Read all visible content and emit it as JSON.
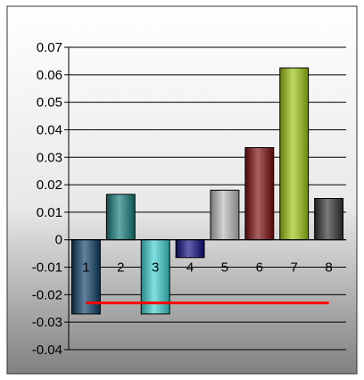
{
  "chart_data": {
    "type": "bar",
    "categories": [
      "1",
      "2",
      "3",
      "4",
      "5",
      "6",
      "7",
      "8"
    ],
    "values": [
      -0.027,
      0.0165,
      -0.027,
      -0.0065,
      0.018,
      0.0335,
      0.0625,
      0.015
    ],
    "reference_line": -0.023,
    "ylim": [
      -0.04,
      0.07
    ],
    "yticks": [
      "0.07",
      "0.06",
      "0.05",
      "0.04",
      "0.03",
      "0.02",
      "0.01",
      "0",
      "-0.01",
      "-0.02",
      "-0.03",
      "-0.04"
    ],
    "title": "",
    "xlabel": "",
    "ylabel": "",
    "grid": true,
    "legend": "none",
    "colors": {
      "bars": [
        "#0d3d66",
        "#127a78",
        "#3fcfcf",
        "#0c0c80",
        "#b9b9b9",
        "#7a0a0a",
        "#9cc40f",
        "#303030"
      ],
      "reference_line": "#ff0000",
      "gridline": "#000000",
      "background_light": "#ffffff",
      "background_dark": "#808080"
    }
  }
}
